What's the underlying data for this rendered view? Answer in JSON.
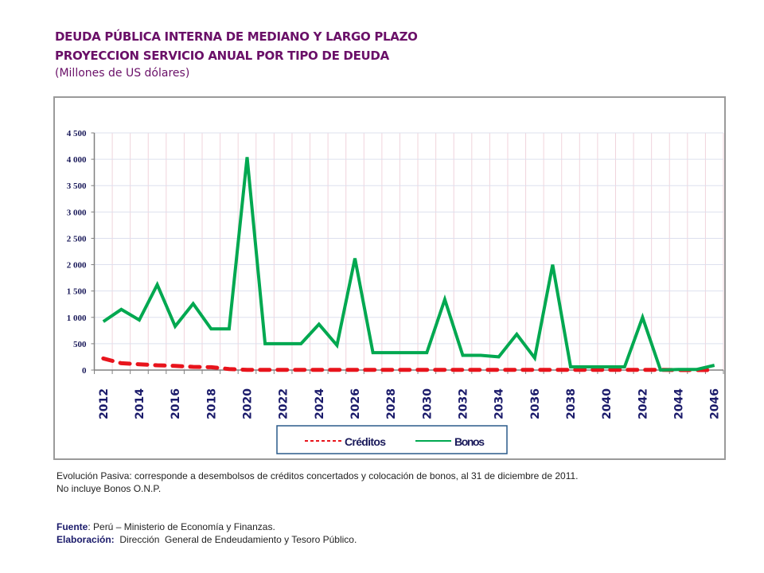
{
  "header": {
    "title": "DEUDA PÚBLICA INTERNA DE MEDIANO Y LARGO PLAZO",
    "subtitle": "PROYECCION SERVICIO ANUAL POR TIPO DE DEUDA",
    "units": "(Millones de US dólares)"
  },
  "chart_data": {
    "type": "line",
    "title": "DEUDA PÚBLICA INTERNA DE MEDIANO Y LARGO PLAZO",
    "xlabel": "",
    "ylabel": "",
    "ylim": [
      0,
      4500
    ],
    "yticks": [
      "0",
      "500",
      "1 000",
      "1 500",
      "2 000",
      "2 500",
      "3 000",
      "3 500",
      "4 000",
      "4 500"
    ],
    "ytick_values": [
      0,
      500,
      1000,
      1500,
      2000,
      2500,
      3000,
      3500,
      4000,
      4500
    ],
    "x": [
      2012,
      2013,
      2014,
      2015,
      2016,
      2017,
      2018,
      2019,
      2020,
      2021,
      2022,
      2023,
      2024,
      2025,
      2026,
      2027,
      2028,
      2029,
      2030,
      2031,
      2032,
      2033,
      2034,
      2035,
      2036,
      2037,
      2038,
      2039,
      2040,
      2041,
      2042,
      2043,
      2044,
      2045,
      2046
    ],
    "xtick_labels": [
      "2012",
      "2014",
      "2016",
      "2018",
      "2020",
      "2022",
      "2024",
      "2026",
      "2028",
      "2030",
      "2032",
      "2034",
      "2036",
      "2038",
      "2040",
      "2042",
      "2044",
      "2046"
    ],
    "grid": true,
    "legend": "bottom",
    "series": [
      {
        "name": "Créditos",
        "color": "#e8141c",
        "style": "dashed",
        "values": [
          220,
          130,
          110,
          90,
          80,
          60,
          55,
          20,
          5,
          5,
          5,
          5,
          5,
          5,
          5,
          5,
          5,
          5,
          5,
          5,
          5,
          5,
          5,
          5,
          5,
          5,
          5,
          5,
          5,
          5,
          5,
          5,
          0,
          0,
          0
        ]
      },
      {
        "name": "Bonos",
        "color": "#00a850",
        "style": "solid",
        "values": [
          920,
          1150,
          950,
          1620,
          830,
          1260,
          780,
          780,
          4040,
          500,
          500,
          500,
          870,
          470,
          2120,
          330,
          330,
          330,
          330,
          1340,
          280,
          280,
          250,
          680,
          230,
          2000,
          60,
          60,
          60,
          60,
          1000,
          0,
          10,
          10,
          90
        ]
      }
    ]
  },
  "notes": {
    "line1": "Evolución Pasiva: corresponde a desembolsos de créditos concertados y colocación de bonos, al 31 de diciembre de 2011.",
    "line2": "No incluye Bonos O.N.P.",
    "source_label": "Fuente",
    "source_text": ": Perú – Ministerio de Economía y Finanzas.",
    "elab_label": "Elaboración:",
    "elab_text": "  Dirección  General de Endeudamiento y Tesoro Público."
  }
}
